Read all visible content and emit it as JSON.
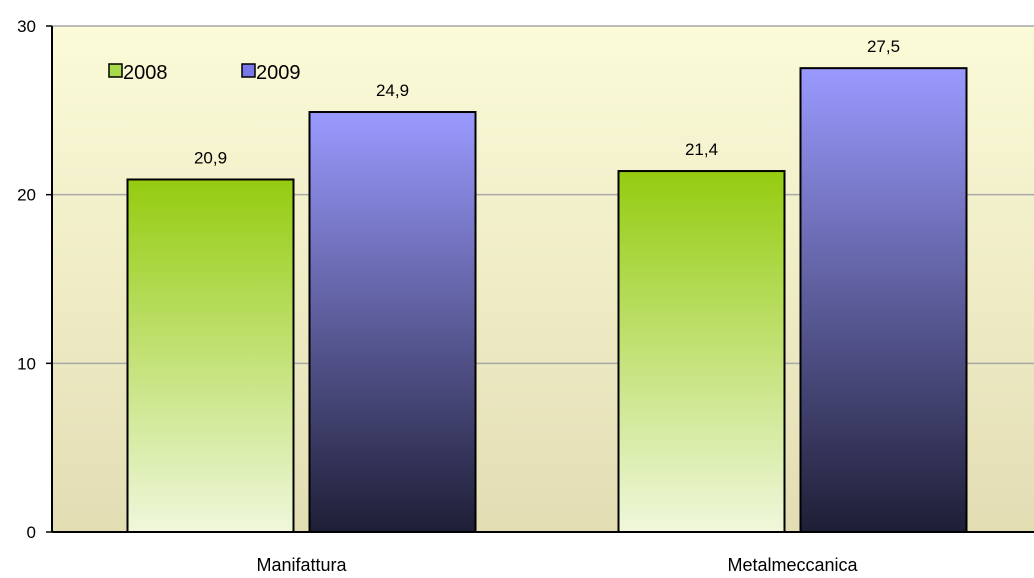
{
  "chart_data": {
    "type": "bar",
    "categories": [
      "Manifattura",
      "Metalmeccanica"
    ],
    "series": [
      {
        "name": "2008",
        "values": [
          20.9,
          21.4
        ],
        "data_labels": [
          "20,9",
          "21,4"
        ]
      },
      {
        "name": "2009",
        "values": [
          24.9,
          27.5
        ],
        "data_labels": [
          "24,9",
          "27,5"
        ]
      }
    ],
    "yticks": [
      0,
      10,
      20,
      30
    ],
    "ytick_labels": [
      "0",
      "10",
      "20",
      "30"
    ],
    "ylim": [
      0,
      30
    ],
    "grid": true,
    "legend_position": "top-left",
    "title": "",
    "xlabel": "",
    "ylabel": ""
  },
  "colors": {
    "plot_bg_top": "#FBFBD8",
    "plot_bg_bottom": "#E3DDB4",
    "gridline": "#A8A8A8",
    "series_2008_top": "#94CC10",
    "series_2008_bottom": "#F0F7DC",
    "series_2009_top": "#9A9AFF",
    "series_2009_bottom": "#1E1E36",
    "legend_2008": "#A8D94A",
    "legend_2009": "#7878E8"
  }
}
